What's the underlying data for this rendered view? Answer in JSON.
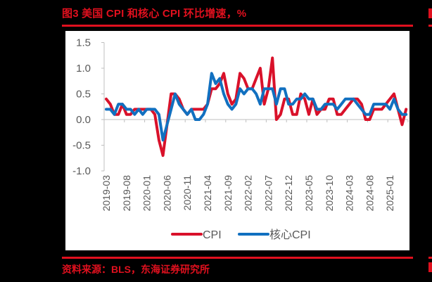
{
  "title": "图3  美国 CPI 和核心 CPI 环比增速，%",
  "source": "资料来源：BLS，东海证券研究所",
  "colors": {
    "accent": "#e0101e",
    "cpi": "#d9112a",
    "core": "#1170c0",
    "axis": "#bfbfbf",
    "tick_text": "#595959"
  },
  "chart_data": {
    "type": "line",
    "title": "美国 CPI 和核心 CPI 环比增速，%",
    "xlabel": "",
    "ylabel": "%",
    "ylim": [
      -1.0,
      1.5
    ],
    "yticks": [
      "1.5",
      "1.0",
      "0.5",
      "0.0",
      "-0.5",
      "-1.0"
    ],
    "ytick_values": [
      1.5,
      1.0,
      0.5,
      0.0,
      -0.5,
      -1.0
    ],
    "xtick_labels": [
      "2019-03",
      "2019-08",
      "2020-01",
      "2020-06",
      "2020-11",
      "2021-04",
      "2021-09",
      "2022-02",
      "2022-07",
      "2022-12",
      "2023-05",
      "2023-10",
      "2024-03",
      "2024-08",
      "2025-01"
    ],
    "x_start": "2019-03",
    "x_end": "2025-05",
    "grid": false,
    "legend_position": "bottom",
    "series": [
      {
        "name": "CPI",
        "color": "#d9112a",
        "values": [
          0.4,
          0.3,
          0.1,
          0.1,
          0.3,
          0.1,
          0.1,
          0.2,
          0.2,
          0.2,
          0.2,
          0.2,
          0.1,
          -0.4,
          -0.7,
          -0.1,
          0.5,
          0.5,
          0.4,
          0.2,
          0.1,
          0.2,
          0.2,
          0.2,
          0.2,
          0.3,
          0.6,
          0.6,
          0.7,
          0.9,
          0.5,
          0.3,
          0.4,
          0.9,
          0.8,
          0.6,
          0.6,
          0.8,
          1.0,
          0.3,
          0.6,
          1.2,
          0.0,
          0.1,
          0.4,
          0.4,
          0.1,
          0.1,
          0.5,
          0.4,
          0.1,
          0.4,
          0.1,
          0.2,
          0.2,
          0.4,
          0.4,
          0.1,
          0.1,
          0.2,
          0.3,
          0.4,
          0.4,
          0.3,
          0.0,
          0.0,
          0.2,
          0.2,
          0.2,
          0.3,
          0.4,
          0.5,
          0.2,
          -0.1,
          0.2
        ]
      },
      {
        "name": "核心CPI",
        "color": "#1170c0",
        "values": [
          0.2,
          0.2,
          0.1,
          0.3,
          0.3,
          0.2,
          0.2,
          0.1,
          0.2,
          0.1,
          0.2,
          0.2,
          0.2,
          0.1,
          -0.4,
          -0.1,
          0.2,
          0.5,
          0.3,
          0.2,
          0.1,
          0.2,
          0.0,
          0.0,
          0.1,
          0.3,
          0.9,
          0.7,
          0.8,
          0.5,
          0.3,
          0.2,
          0.3,
          0.6,
          0.5,
          0.6,
          0.6,
          0.5,
          0.3,
          0.6,
          0.6,
          0.6,
          0.3,
          0.6,
          0.6,
          0.3,
          0.3,
          0.4,
          0.4,
          0.5,
          0.4,
          0.4,
          0.2,
          0.2,
          0.3,
          0.3,
          0.3,
          0.2,
          0.3,
          0.4,
          0.4,
          0.4,
          0.3,
          0.2,
          0.1,
          0.1,
          0.3,
          0.3,
          0.3,
          0.3,
          0.2,
          0.4,
          0.2,
          0.1,
          0.1
        ]
      }
    ]
  },
  "legend": [
    {
      "label": "CPI",
      "color": "#d9112a"
    },
    {
      "label": "核心CPI",
      "color": "#1170c0"
    }
  ]
}
